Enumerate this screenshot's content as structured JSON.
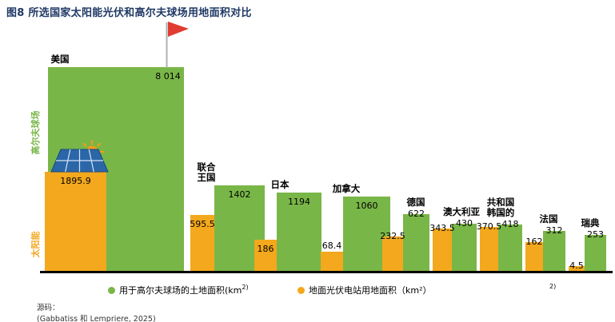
{
  "title": "图8 所选国家太阳能光伏和高尔夫球场用地面积对比",
  "axis": {
    "left_top_label": "高尔夫球场",
    "left_bottom_label": "太阳能"
  },
  "legend": {
    "golf_label": "用于高尔夫球场的土地面积(km",
    "golf_sup": "2)",
    "solar_label": "地面光伏电站用地面积（km²）",
    "stray_sup": "2)"
  },
  "source": {
    "label": "源码：",
    "citation": "(Gabbatiss 和 Lempriere, 2025)"
  },
  "colors": {
    "golf": "#79B648",
    "solar": "#F3A81D",
    "title": "#1F3864",
    "flag_red": "#E03C31",
    "sun_orange": "#F59B18",
    "panel_blue": "#2B66A8",
    "baseline": "#000000"
  },
  "icons": {
    "flag": "golf-flag-icon",
    "solar_panel": "solar-panel-icon",
    "sun": "sun-icon"
  },
  "chart_data": {
    "type": "bar",
    "title": "图8 所选国家太阳能光伏和高尔夫球场用地面积对比",
    "unit": "km²",
    "value_axis_scale": "sqrt",
    "grid": false,
    "legend_position": "bottom",
    "series": [
      {
        "name": "用于高尔夫球场的土地面积(km²)",
        "color_key": "golf"
      },
      {
        "name": "地面光伏电站用地面积（km²）",
        "color_key": "solar"
      }
    ],
    "countries": [
      {
        "name": "美国",
        "label_lines": [
          "美国"
        ],
        "golf": 8014,
        "golf_label": "8 014",
        "solar": 1895.9,
        "solar_label": "1895.9"
      },
      {
        "name": "联合王国",
        "label_lines": [
          "联合",
          "王国"
        ],
        "golf": 1402,
        "golf_label": "1402",
        "solar": 595.5,
        "solar_label": "595.5"
      },
      {
        "name": "日本",
        "label_lines": [
          "日本"
        ],
        "golf": 1194,
        "golf_label": "1194",
        "solar": 186,
        "solar_label": "186"
      },
      {
        "name": "加拿大",
        "label_lines": [
          "加拿大"
        ],
        "golf": 1060,
        "golf_label": "1060",
        "solar": 68.4,
        "solar_label": "68.4"
      },
      {
        "name": "德国",
        "label_lines": [
          "德国"
        ],
        "golf": 622,
        "golf_label": "622",
        "solar": 232.5,
        "solar_label": "232.5"
      },
      {
        "name": "澳大利亚",
        "label_lines": [
          "澳大利亚"
        ],
        "golf": 430,
        "golf_label": "430",
        "solar": 343.5,
        "solar_label": "343.5"
      },
      {
        "name": "韩国的共和国",
        "label_lines": [
          "共和国",
          "韩国的"
        ],
        "golf": 418,
        "golf_label": "418",
        "solar": 370.5,
        "solar_label": "370.5"
      },
      {
        "name": "法国",
        "label_lines": [
          "法国"
        ],
        "golf": 312,
        "golf_label": "312",
        "solar": 162,
        "solar_label": "162"
      },
      {
        "name": "瑞典",
        "label_lines": [
          "瑞典"
        ],
        "golf": 253,
        "golf_label": "253",
        "solar": 4.5,
        "solar_label": "4.5"
      }
    ]
  }
}
